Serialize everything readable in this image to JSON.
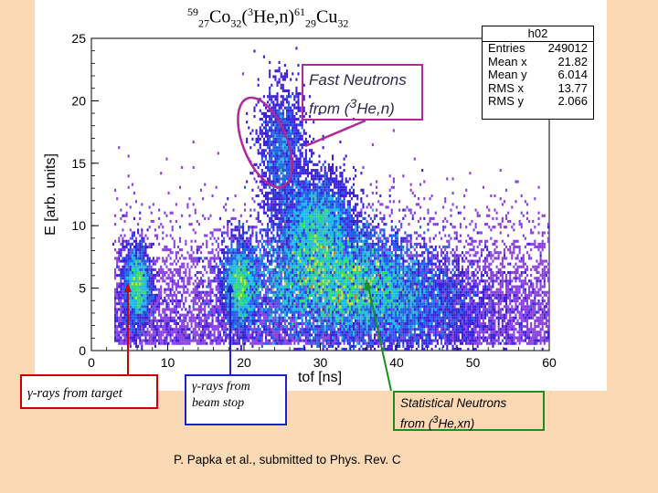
{
  "slide": {
    "title": {
      "a": "59",
      "b": "27",
      "c": "Co",
      "d": "32",
      "e": "(",
      "f": "3",
      "g": "He,n)",
      "h": "61",
      "i": "29",
      "j": "Cu",
      "k": "32"
    },
    "stats": {
      "name": "h02",
      "rows": [
        {
          "label": "Entries",
          "value": "249012"
        },
        {
          "label": "Mean x",
          "value": "21.82"
        },
        {
          "label": "Mean y",
          "value": "6.014"
        },
        {
          "label": "RMS x",
          "value": "13.77"
        },
        {
          "label": "RMS y",
          "value": "2.066"
        }
      ]
    },
    "callouts": {
      "fast_line1": "Fast Neutrons",
      "fast_line2a": "from (",
      "fast_sup": "3",
      "fast_line2b": "He,n)",
      "target": "γ-rays from target",
      "beamstop_line1": "γ-rays from",
      "beamstop_line2": "beam stop",
      "stat_line1": "Statistical Neutrons",
      "stat_line2a": "from (",
      "stat_sup": "3",
      "stat_line2b": "He,xn)"
    },
    "citation": "P. Papka et al., submitted to Phys. Rev. C",
    "colors": {
      "red": "#d00000",
      "blue": "#1a22c8",
      "green": "#1d8f1d",
      "purple": "#b0289a"
    }
  },
  "chart_data": {
    "type": "heatmap",
    "xlabel": "tof [ns]",
    "ylabel": "E [arb. units]",
    "xlim": [
      0,
      60
    ],
    "ylim": [
      0,
      25
    ],
    "xticks": [
      0,
      10,
      20,
      30,
      40,
      50,
      60
    ],
    "yticks": [
      0,
      5,
      10,
      15,
      20,
      25
    ],
    "clusters": [
      {
        "x": 6,
        "y": 5.2,
        "sx": 0.9,
        "sy": 1.6
      },
      {
        "x": 19.5,
        "y": 5.2,
        "sx": 1.1,
        "sy": 1.7
      },
      {
        "x": 32,
        "y": 5.5,
        "sx": 6,
        "sy": 2.1
      },
      {
        "x": 29.5,
        "y": 10,
        "sx": 2.5,
        "sy": 2
      },
      {
        "x": 25,
        "y": 16,
        "sx": 1.5,
        "sy": 2.5
      },
      {
        "x": 40,
        "y": 3.5,
        "sx": 6,
        "sy": 2
      }
    ]
  }
}
